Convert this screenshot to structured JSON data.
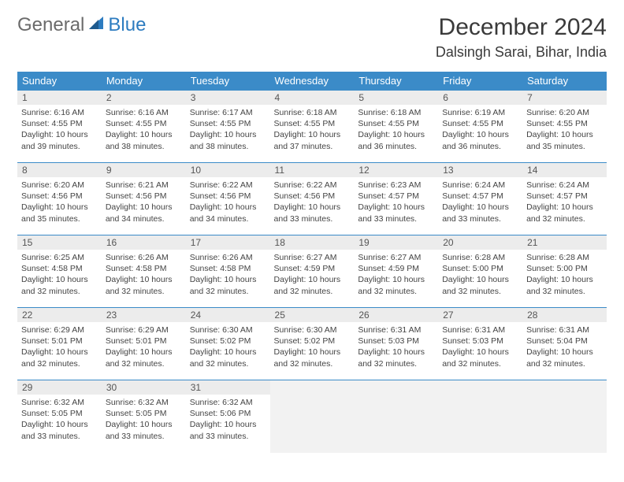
{
  "logo": {
    "part1": "General",
    "part2": "Blue"
  },
  "title": "December 2024",
  "location": "Dalsingh Sarai, Bihar, India",
  "colors": {
    "header_bg": "#3b8bc8",
    "header_text": "#ffffff",
    "daynum_bg": "#ececec",
    "border": "#3b8bc8",
    "empty_bg": "#f2f2f2",
    "logo_gray": "#6b6b6b",
    "logo_blue": "#2d7cc0"
  },
  "weekdays": [
    "Sunday",
    "Monday",
    "Tuesday",
    "Wednesday",
    "Thursday",
    "Friday",
    "Saturday"
  ],
  "layout": {
    "first_weekday_index": 0,
    "days_in_month": 31,
    "rows": 5,
    "cols": 7
  },
  "days": [
    {
      "n": 1,
      "sunrise": "6:16 AM",
      "sunset": "4:55 PM",
      "daylight": "10 hours and 39 minutes."
    },
    {
      "n": 2,
      "sunrise": "6:16 AM",
      "sunset": "4:55 PM",
      "daylight": "10 hours and 38 minutes."
    },
    {
      "n": 3,
      "sunrise": "6:17 AM",
      "sunset": "4:55 PM",
      "daylight": "10 hours and 38 minutes."
    },
    {
      "n": 4,
      "sunrise": "6:18 AM",
      "sunset": "4:55 PM",
      "daylight": "10 hours and 37 minutes."
    },
    {
      "n": 5,
      "sunrise": "6:18 AM",
      "sunset": "4:55 PM",
      "daylight": "10 hours and 36 minutes."
    },
    {
      "n": 6,
      "sunrise": "6:19 AM",
      "sunset": "4:55 PM",
      "daylight": "10 hours and 36 minutes."
    },
    {
      "n": 7,
      "sunrise": "6:20 AM",
      "sunset": "4:55 PM",
      "daylight": "10 hours and 35 minutes."
    },
    {
      "n": 8,
      "sunrise": "6:20 AM",
      "sunset": "4:56 PM",
      "daylight": "10 hours and 35 minutes."
    },
    {
      "n": 9,
      "sunrise": "6:21 AM",
      "sunset": "4:56 PM",
      "daylight": "10 hours and 34 minutes."
    },
    {
      "n": 10,
      "sunrise": "6:22 AM",
      "sunset": "4:56 PM",
      "daylight": "10 hours and 34 minutes."
    },
    {
      "n": 11,
      "sunrise": "6:22 AM",
      "sunset": "4:56 PM",
      "daylight": "10 hours and 33 minutes."
    },
    {
      "n": 12,
      "sunrise": "6:23 AM",
      "sunset": "4:57 PM",
      "daylight": "10 hours and 33 minutes."
    },
    {
      "n": 13,
      "sunrise": "6:24 AM",
      "sunset": "4:57 PM",
      "daylight": "10 hours and 33 minutes."
    },
    {
      "n": 14,
      "sunrise": "6:24 AM",
      "sunset": "4:57 PM",
      "daylight": "10 hours and 32 minutes."
    },
    {
      "n": 15,
      "sunrise": "6:25 AM",
      "sunset": "4:58 PM",
      "daylight": "10 hours and 32 minutes."
    },
    {
      "n": 16,
      "sunrise": "6:26 AM",
      "sunset": "4:58 PM",
      "daylight": "10 hours and 32 minutes."
    },
    {
      "n": 17,
      "sunrise": "6:26 AM",
      "sunset": "4:58 PM",
      "daylight": "10 hours and 32 minutes."
    },
    {
      "n": 18,
      "sunrise": "6:27 AM",
      "sunset": "4:59 PM",
      "daylight": "10 hours and 32 minutes."
    },
    {
      "n": 19,
      "sunrise": "6:27 AM",
      "sunset": "4:59 PM",
      "daylight": "10 hours and 32 minutes."
    },
    {
      "n": 20,
      "sunrise": "6:28 AM",
      "sunset": "5:00 PM",
      "daylight": "10 hours and 32 minutes."
    },
    {
      "n": 21,
      "sunrise": "6:28 AM",
      "sunset": "5:00 PM",
      "daylight": "10 hours and 32 minutes."
    },
    {
      "n": 22,
      "sunrise": "6:29 AM",
      "sunset": "5:01 PM",
      "daylight": "10 hours and 32 minutes."
    },
    {
      "n": 23,
      "sunrise": "6:29 AM",
      "sunset": "5:01 PM",
      "daylight": "10 hours and 32 minutes."
    },
    {
      "n": 24,
      "sunrise": "6:30 AM",
      "sunset": "5:02 PM",
      "daylight": "10 hours and 32 minutes."
    },
    {
      "n": 25,
      "sunrise": "6:30 AM",
      "sunset": "5:02 PM",
      "daylight": "10 hours and 32 minutes."
    },
    {
      "n": 26,
      "sunrise": "6:31 AM",
      "sunset": "5:03 PM",
      "daylight": "10 hours and 32 minutes."
    },
    {
      "n": 27,
      "sunrise": "6:31 AM",
      "sunset": "5:03 PM",
      "daylight": "10 hours and 32 minutes."
    },
    {
      "n": 28,
      "sunrise": "6:31 AM",
      "sunset": "5:04 PM",
      "daylight": "10 hours and 32 minutes."
    },
    {
      "n": 29,
      "sunrise": "6:32 AM",
      "sunset": "5:05 PM",
      "daylight": "10 hours and 33 minutes."
    },
    {
      "n": 30,
      "sunrise": "6:32 AM",
      "sunset": "5:05 PM",
      "daylight": "10 hours and 33 minutes."
    },
    {
      "n": 31,
      "sunrise": "6:32 AM",
      "sunset": "5:06 PM",
      "daylight": "10 hours and 33 minutes."
    }
  ],
  "labels": {
    "sunrise": "Sunrise:",
    "sunset": "Sunset:",
    "daylight": "Daylight:"
  }
}
